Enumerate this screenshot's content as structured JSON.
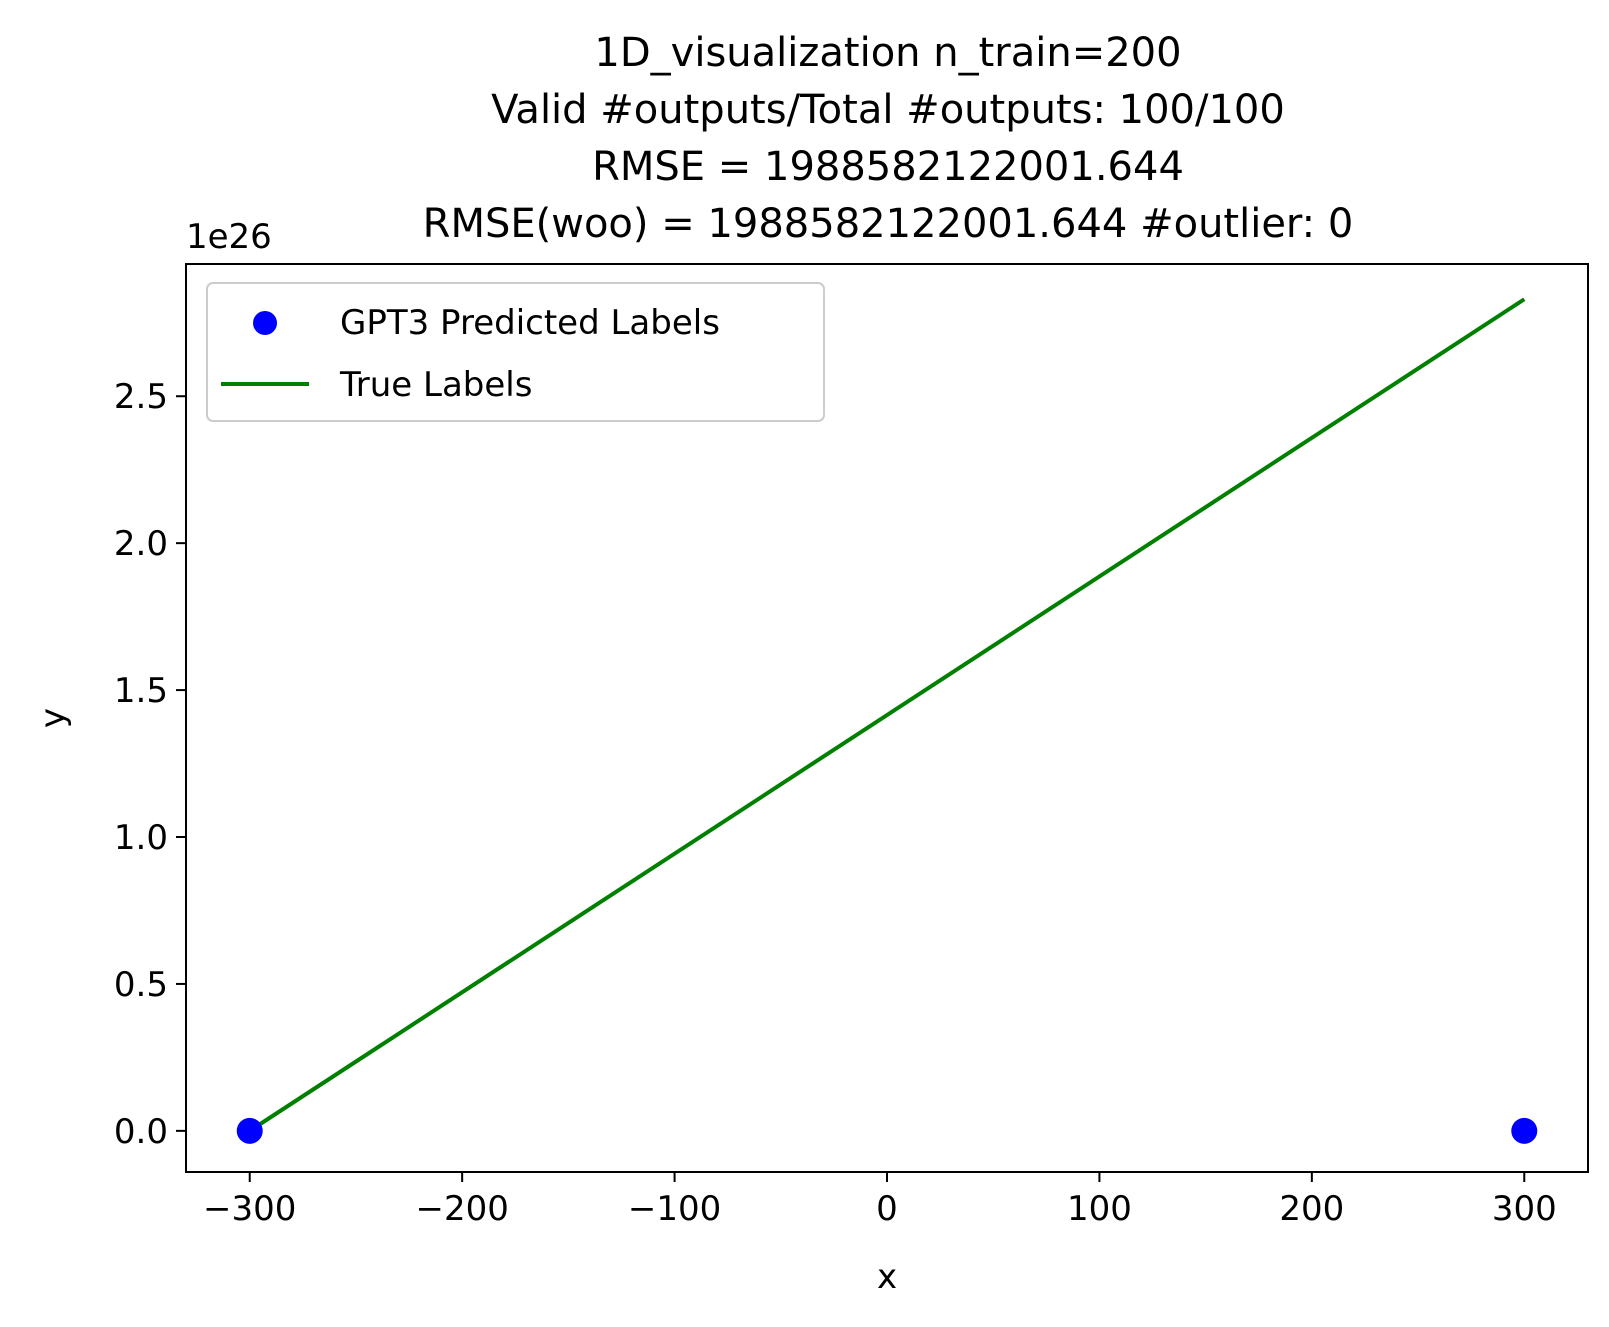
{
  "chart_data": {
    "type": "scatter",
    "title_lines": [
      "1D_visualization  n_train=200",
      "Valid #outputs/Total #outputs: 100/100",
      "RMSE      = 1988582122001.644",
      "RMSE(woo) = 1988582122001.644   #outlier: 0"
    ],
    "xlabel": "x",
    "ylabel": "y",
    "y_offset_text": "1e26",
    "xlim": [
      -330,
      330
    ],
    "ylim": [
      -0.14,
      2.95
    ],
    "y_scale_exponent": 26,
    "x_ticks": [
      -300,
      -200,
      -100,
      0,
      100,
      200,
      300
    ],
    "x_tick_labels": [
      "−300",
      "−200",
      "−100",
      "0",
      "100",
      "200",
      "300"
    ],
    "y_ticks": [
      0.0,
      0.5,
      1.0,
      1.5,
      2.0,
      2.5
    ],
    "y_tick_labels": [
      "0.0",
      "0.5",
      "1.0",
      "1.5",
      "2.0",
      "2.5"
    ],
    "grid": false,
    "legend_position": "top-left",
    "series": [
      {
        "name": "GPT3 Predicted Labels",
        "kind": "scatter",
        "color": "#0000ff",
        "x": [
          -300,
          300
        ],
        "y": [
          0.0,
          0.0
        ]
      },
      {
        "name": "True Labels",
        "kind": "line",
        "color": "#008000",
        "x": [
          -300,
          300
        ],
        "y": [
          0.0,
          2.83
        ]
      }
    ]
  }
}
